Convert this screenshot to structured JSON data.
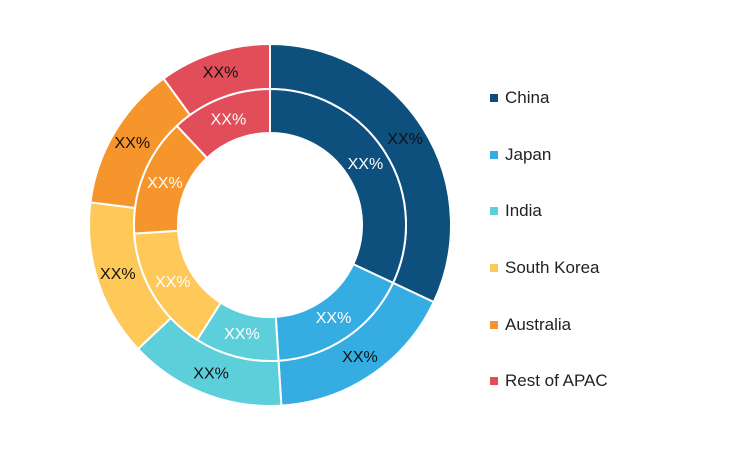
{
  "chart_data": {
    "type": "donut",
    "categories": [
      "China",
      "Japan",
      "India",
      "South Korea",
      "Australia",
      "Rest of APAC"
    ],
    "colors": [
      "#0d4f7d",
      "#35ade2",
      "#5ccfdb",
      "#fec959",
      "#f6952c",
      "#e14d59"
    ],
    "series": [
      {
        "ring": "outer",
        "values": [
          32,
          17,
          14,
          14,
          13,
          10
        ],
        "labels": [
          "XX%",
          "XX%",
          "XX%",
          "XX%",
          "XX%",
          "XX%"
        ]
      },
      {
        "ring": "inner",
        "values": [
          32,
          17,
          10,
          15,
          14,
          12
        ],
        "labels": [
          "XX%",
          "XX%",
          "XX%",
          "XX%",
          "XX%",
          "XX%"
        ]
      }
    ],
    "legend_position": "right"
  }
}
